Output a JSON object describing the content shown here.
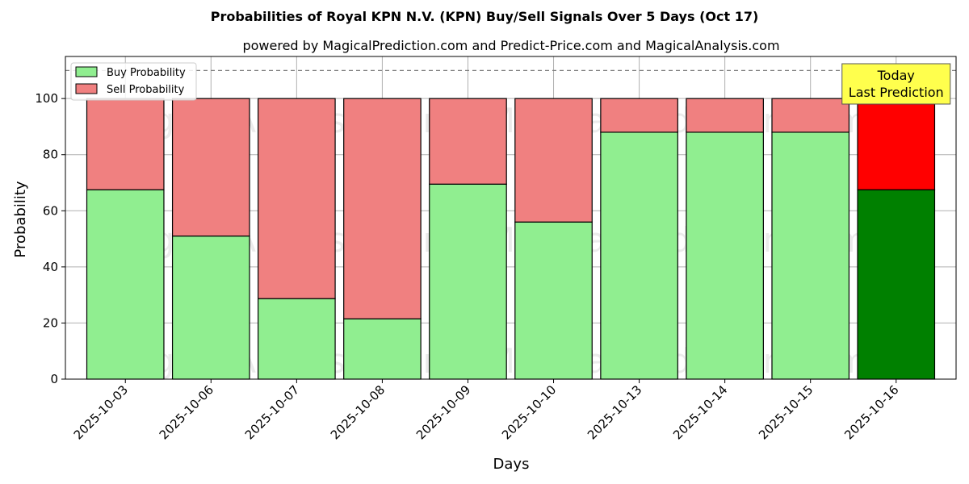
{
  "chart_data": {
    "type": "bar",
    "stacked": true,
    "title": "Probabilities of Royal KPN N.V. (KPN) Buy/Sell Signals Over 5 Days (Oct 17)",
    "subtitle": "powered by MagicalPrediction.com and Predict-Price.com and MagicalAnalysis.com",
    "xlabel": "Days",
    "ylabel": "Probability",
    "ylim": [
      0,
      115
    ],
    "yticks": [
      0,
      20,
      40,
      60,
      80,
      100
    ],
    "reference_line": 110,
    "grid": true,
    "legend_placement": "top-left",
    "categories": [
      "2025-10-03",
      "2025-10-06",
      "2025-10-07",
      "2025-10-08",
      "2025-10-09",
      "2025-10-10",
      "2025-10-13",
      "2025-10-14",
      "2025-10-15",
      "2025-10-16"
    ],
    "series": [
      {
        "name": "Buy Probability",
        "color": "#90ee90",
        "highlight_color": "#008000",
        "values": [
          67.5,
          51,
          28.7,
          21.5,
          69.5,
          56,
          88,
          88,
          88,
          67.5
        ]
      },
      {
        "name": "Sell Probability",
        "color": "#f08080",
        "highlight_color": "#ff0000",
        "values": [
          32.5,
          49,
          71.3,
          78.5,
          30.5,
          44,
          12,
          12,
          12,
          32.5
        ]
      }
    ],
    "highlight_index": 9,
    "annotation": {
      "lines": [
        "Today",
        "Last Prediction"
      ],
      "background": "#ffff4d"
    },
    "watermarks": [
      "MagicalAnalysis.com",
      "MagicalPrediction.com"
    ]
  }
}
